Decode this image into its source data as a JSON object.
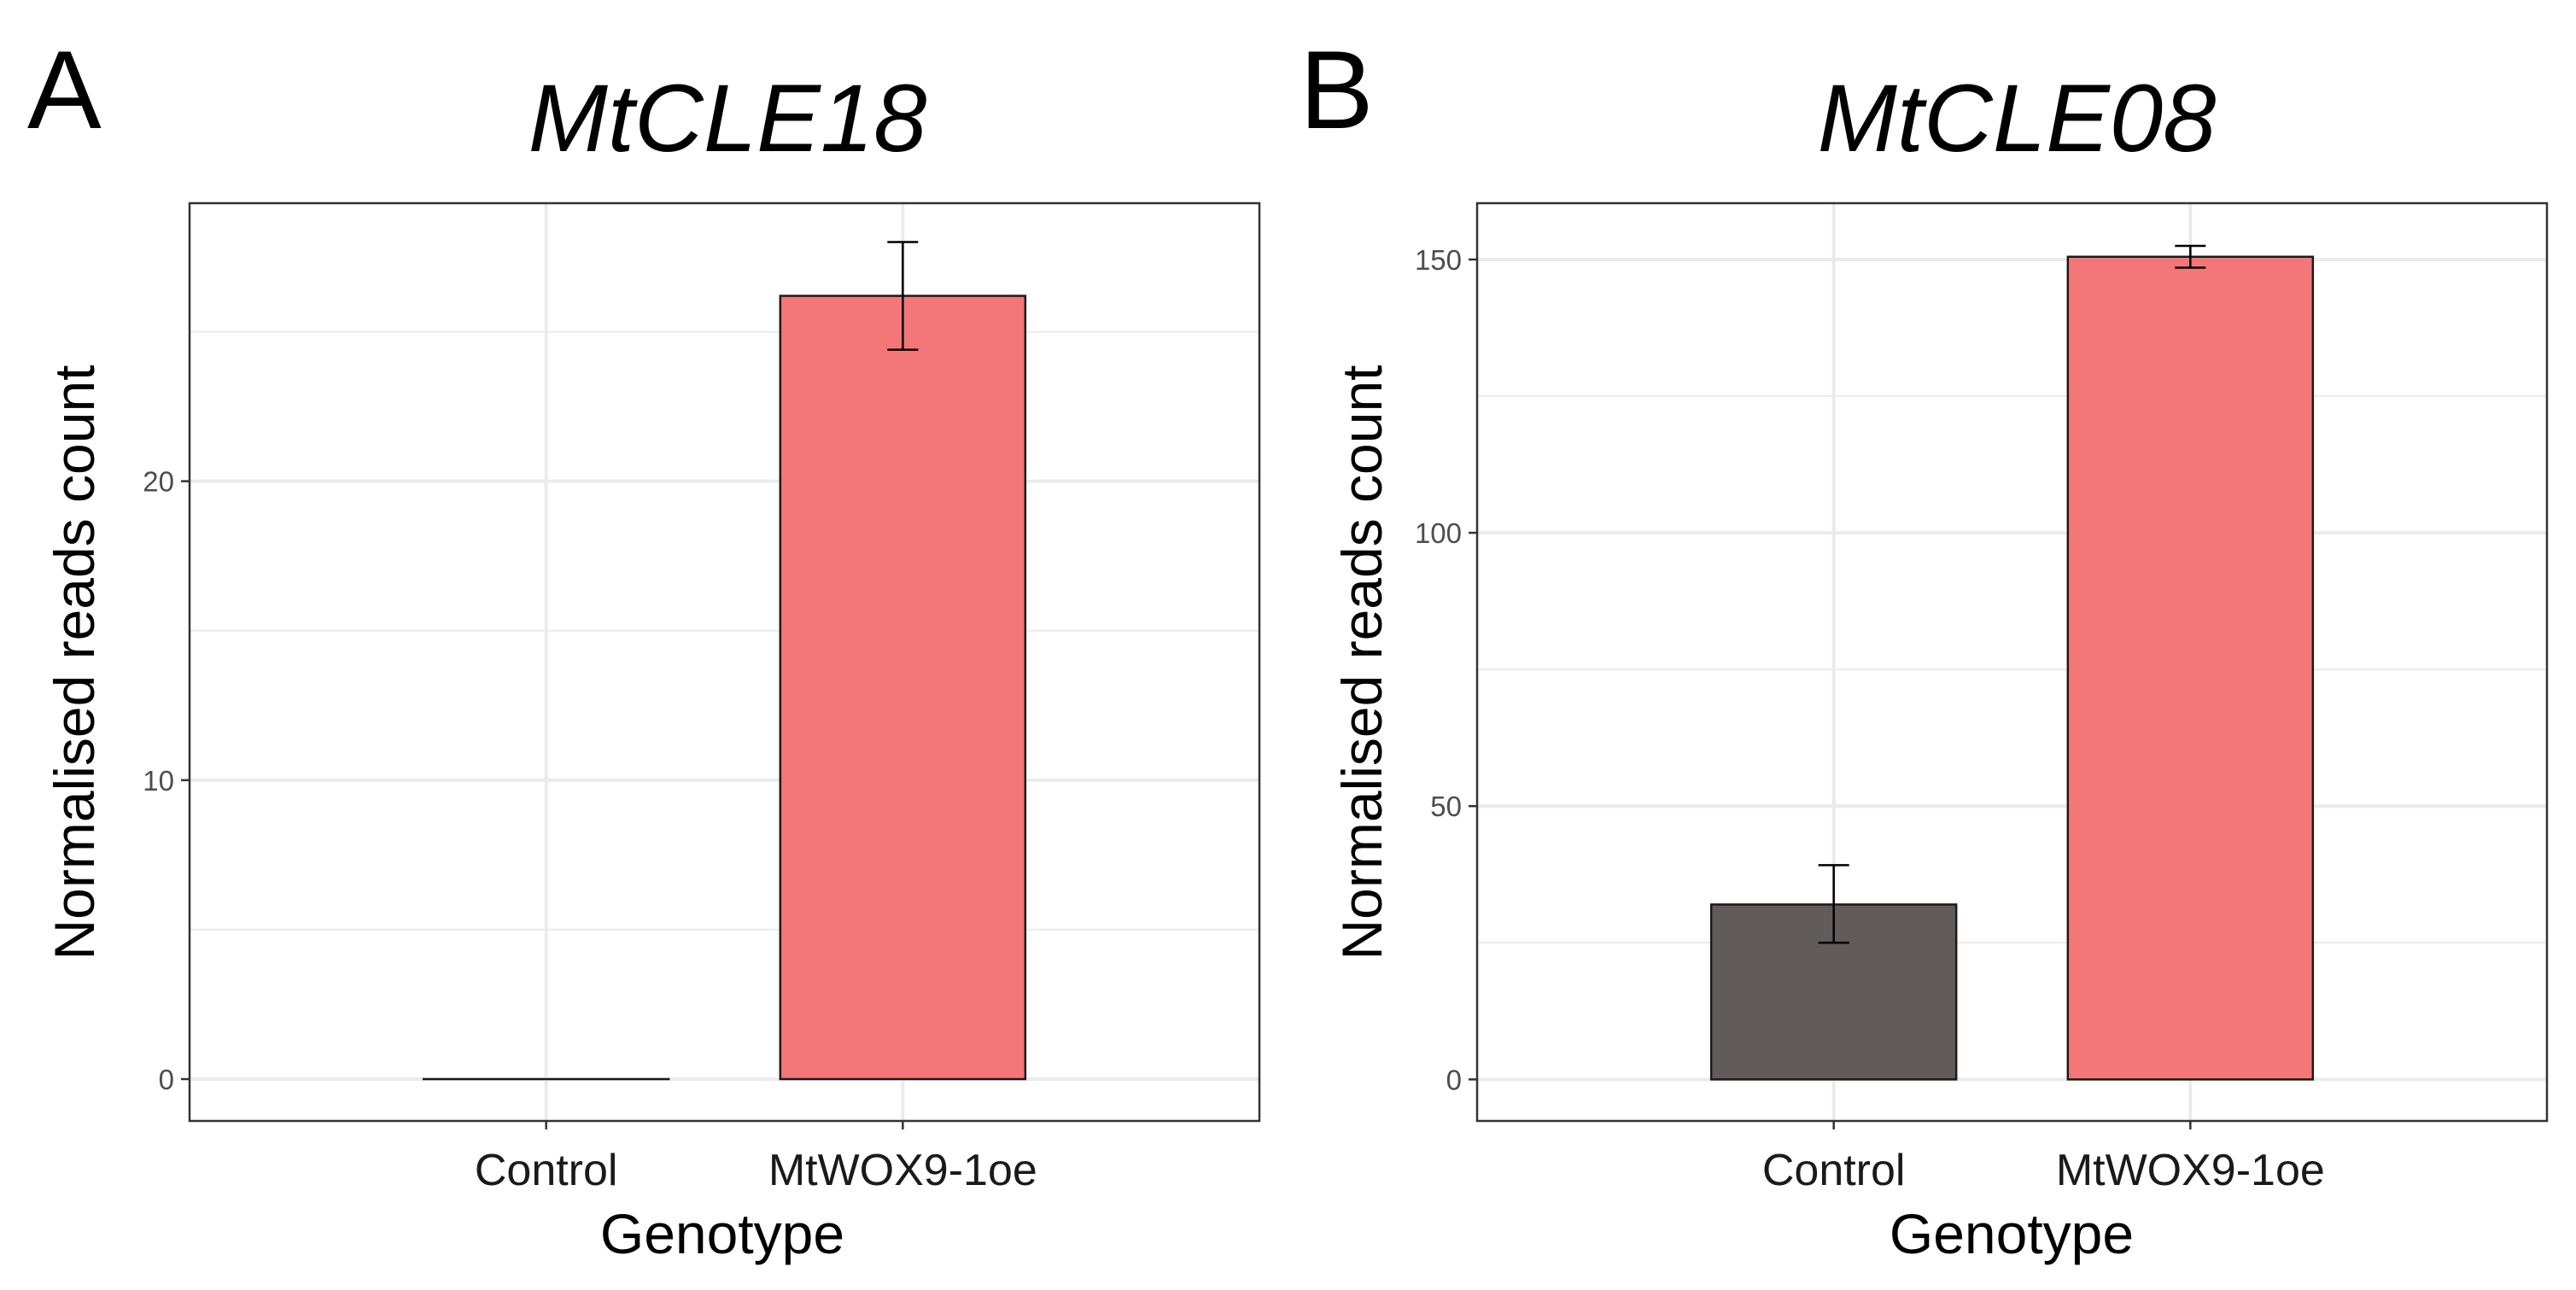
{
  "chart_data": [
    {
      "panel_label": "A",
      "type": "bar",
      "title": "MtCLE18",
      "xlabel": "Genotype",
      "ylabel": "Normalised reads count",
      "categories": [
        "Control",
        "MtWOX9-1oe"
      ],
      "values": [
        0,
        26.2
      ],
      "error_low": [
        0,
        24.4
      ],
      "error_high": [
        0,
        28.0
      ],
      "colors": [
        "#615b5a",
        "#f37778"
      ],
      "ylim": [
        -1.4,
        29.3
      ],
      "yticks": [
        0,
        10,
        20
      ],
      "ytick_labels": [
        "0",
        "10",
        "20"
      ],
      "grid": true
    },
    {
      "panel_label": "B",
      "type": "bar",
      "title": "MtCLE08",
      "xlabel": "Genotype",
      "ylabel": "Normalised reads count",
      "categories": [
        "Control",
        "MtWOX9-1oe"
      ],
      "values": [
        32,
        150.5
      ],
      "error_low": [
        25,
        148.5
      ],
      "error_high": [
        39.2,
        152.5
      ],
      "colors": [
        "#615b5a",
        "#f37778"
      ],
      "ylim": [
        -7.6,
        160.3
      ],
      "yticks": [
        0,
        50,
        100,
        150
      ],
      "ytick_labels": [
        "0",
        "50",
        "100",
        "150"
      ],
      "grid": true
    }
  ]
}
